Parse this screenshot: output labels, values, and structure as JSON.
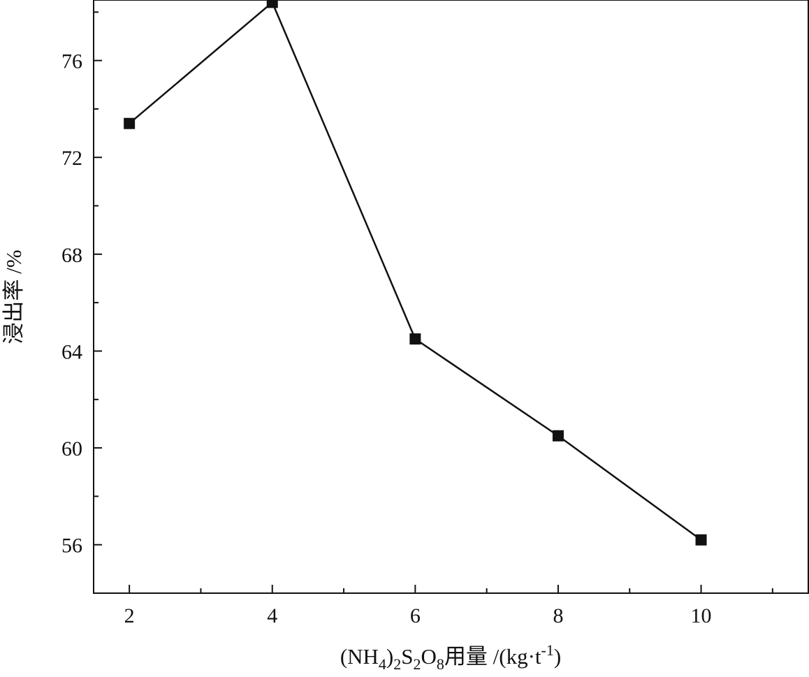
{
  "chart_data": {
    "type": "line",
    "title": "",
    "xlabel_parts": {
      "prefix": "(NH",
      "sub1": "4",
      "mid1": ")",
      "sub2": "2",
      "mid2": "S",
      "sub3": "2",
      "mid3": "O",
      "sub4": "8",
      "mid4": "用量 /(kg·t",
      "sup1": "-1",
      "suffix": ")"
    },
    "ylabel": "浸出率 /%",
    "xlim": [
      1.5,
      11.5
    ],
    "ylim": [
      54,
      78.5
    ],
    "xticks": [
      2,
      4,
      6,
      8,
      10
    ],
    "yticks": [
      56,
      60,
      64,
      68,
      72,
      76
    ],
    "xminor": [
      3,
      5,
      7,
      9,
      11
    ],
    "yminor": [
      58,
      62,
      66,
      70,
      74,
      78
    ],
    "x": [
      2,
      4,
      6,
      8,
      10
    ],
    "series": [
      {
        "values": [
          73.4,
          78.4,
          64.5,
          60.5,
          56.2
        ]
      }
    ],
    "marker": "square",
    "line_color": "#111111",
    "marker_color": "#111111"
  }
}
